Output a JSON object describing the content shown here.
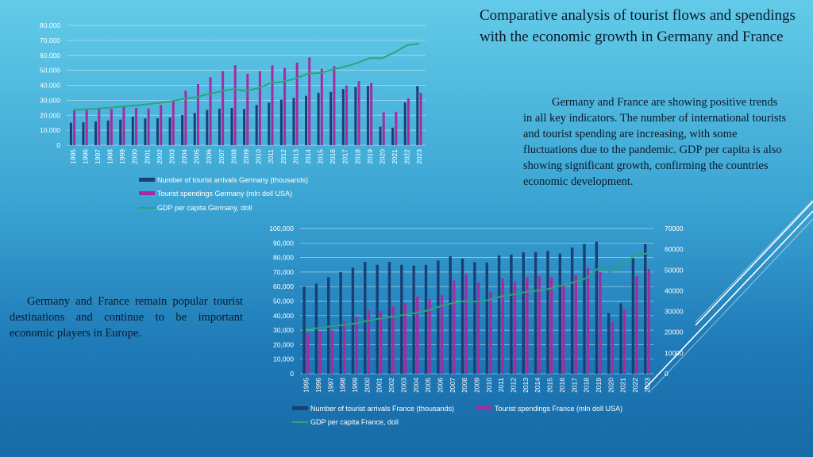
{
  "title": "Comparative analysis of tourist flows and spendings with the economic growth  in Germany and France",
  "description_right": "Germany and France are showing positive trends in all key indicators. The number of international tourists and tourist spending are increasing, with some fluctuations due to the pandemic. GDP per capita is also showing significant growth, confirming the countries economic development.",
  "description_left": "Germany and France remain popular tourist destinations and continue to be important economic players in Europe.",
  "colors": {
    "arrivals": "#1a3f73",
    "spendings": "#a62ba0",
    "gdp": "#2aa57b"
  },
  "chart_data": [
    {
      "type": "bar",
      "categories": [
        "1995",
        "1996",
        "1997",
        "1998",
        "1999",
        "2000",
        "2001",
        "2002",
        "2003",
        "2004",
        "2005",
        "2006",
        "2007",
        "2008",
        "2009",
        "2010",
        "2011",
        "2012",
        "2013",
        "2014",
        "2015",
        "2016",
        "2017",
        "2018",
        "2019",
        "2020",
        "2021",
        "2022",
        "2023"
      ],
      "y_ticks": [
        "0",
        "10,000",
        "20,000",
        "30,000",
        "40,000",
        "50,000",
        "60,000",
        "70,000",
        "80,000"
      ],
      "ylim": [
        0,
        80000
      ],
      "series": [
        {
          "name": "Number of tourist arrivals Germany (thousands)",
          "kind": "bar",
          "color": "#1a3f73",
          "values": [
            15000,
            15300,
            15800,
            16500,
            17100,
            19000,
            17900,
            18000,
            18400,
            20100,
            21500,
            23500,
            24400,
            24900,
            24200,
            26900,
            28400,
            30400,
            31500,
            33000,
            35000,
            35600,
            37500,
            38900,
            39600,
            12400,
            11700,
            28500,
            39500
          ]
        },
        {
          "name": "Tourist spendings Germany (mln doll USA)",
          "kind": "bar",
          "color": "#a62ba0",
          "values": [
            23500,
            24300,
            24300,
            24200,
            25500,
            24900,
            24500,
            26800,
            30000,
            36500,
            40800,
            45500,
            49500,
            53400,
            47700,
            49400,
            53300,
            51700,
            55200,
            58600,
            51000,
            52800,
            39900,
            42800,
            41600,
            22000,
            22300,
            31300,
            35000
          ]
        },
        {
          "name": "GDP per capita Germany, doll",
          "kind": "line",
          "color": "#2aa57b",
          "values": [
            23500,
            24000,
            24500,
            25000,
            25800,
            26500,
            27300,
            28300,
            29400,
            31000,
            32200,
            34200,
            36000,
            37500,
            36200,
            38200,
            41500,
            42500,
            44500,
            47800,
            48200,
            50500,
            52500,
            55000,
            58200,
            58100,
            62000,
            66800,
            67800
          ]
        }
      ]
    },
    {
      "type": "bar",
      "categories": [
        "1995",
        "1996",
        "1997",
        "1998",
        "1999",
        "2000",
        "2001",
        "2002",
        "2003",
        "2004",
        "2005",
        "2006",
        "2007",
        "2008",
        "2009",
        "2010",
        "2011",
        "2012",
        "2013",
        "2014",
        "2015",
        "2016",
        "2017",
        "2018",
        "2019",
        "2020",
        "2021",
        "2022",
        "2023"
      ],
      "y_ticks": [
        "0",
        "10,000",
        "20,000",
        "30,000",
        "40,000",
        "50,000",
        "60,000",
        "70,000",
        "80,000",
        "90,000",
        "100,000"
      ],
      "y2_ticks": [
        "0",
        "10000",
        "20000",
        "30000",
        "40000",
        "50000",
        "60000",
        "70000"
      ],
      "ylim": [
        0,
        100000
      ],
      "y2lim": [
        0,
        70000
      ],
      "series": [
        {
          "name": "Number of tourist arrivals France (thousands)",
          "kind": "bar",
          "axis": "left",
          "color": "#1a3f73",
          "values": [
            60000,
            62000,
            66500,
            70000,
            73000,
            77000,
            75000,
            77000,
            75000,
            74500,
            75000,
            77900,
            80800,
            79200,
            76800,
            76600,
            81400,
            82000,
            83600,
            83800,
            84500,
            82700,
            86900,
            89400,
            90900,
            41700,
            48400,
            79400,
            89400
          ]
        },
        {
          "name": "Tourist spendings France (mln doll USA)",
          "kind": "bar",
          "axis": "right",
          "color": "#a62ba0",
          "values": [
            19500,
            20500,
            21000,
            25000,
            27500,
            30500,
            30200,
            32500,
            34000,
            37200,
            36000,
            38000,
            45000,
            48000,
            44000,
            39500,
            46000,
            44500,
            46500,
            47000,
            46500,
            43000,
            47500,
            51000,
            49000,
            25000,
            31000,
            47000,
            50500
          ]
        },
        {
          "name": "GDP per capita France, doll",
          "kind": "line",
          "axis": "right",
          "color": "#2aa57b",
          "values": [
            21500,
            22000,
            22800,
            23500,
            24200,
            25500,
            26500,
            27500,
            28300,
            29300,
            30500,
            32500,
            34000,
            35000,
            34800,
            35500,
            37200,
            38200,
            39400,
            40000,
            41000,
            42500,
            44200,
            46000,
            51000,
            49000,
            53000,
            57000,
            58000
          ]
        }
      ]
    }
  ]
}
